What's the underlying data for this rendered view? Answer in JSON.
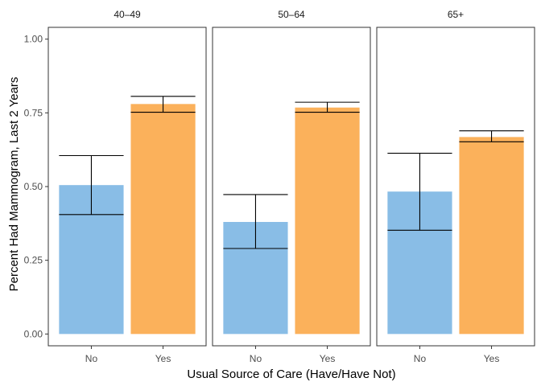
{
  "chart_data": {
    "type": "bar",
    "facets": [
      "40–49",
      "50–64",
      "65+"
    ],
    "categories": [
      "No",
      "Yes"
    ],
    "series": [
      {
        "facet": "40–49",
        "values": [
          0.505,
          0.78
        ],
        "ci_low": [
          0.405,
          0.752
        ],
        "ci_high": [
          0.605,
          0.806
        ]
      },
      {
        "facet": "50–64",
        "values": [
          0.38,
          0.768
        ],
        "ci_low": [
          0.29,
          0.752
        ],
        "ci_high": [
          0.473,
          0.786
        ]
      },
      {
        "facet": "65+",
        "values": [
          0.483,
          0.668
        ],
        "ci_low": [
          0.352,
          0.652
        ],
        "ci_high": [
          0.613,
          0.689
        ]
      }
    ],
    "colors": {
      "No": "#89bde6",
      "Yes": "#fbb15b"
    },
    "xlabel": "Usual Source of Care (Have/Have Not)",
    "ylabel": "Percent Had Mammogram, Last 2 Years",
    "ylim": [
      -0.04,
      1.04
    ],
    "yticks": [
      "0.00",
      "0.25",
      "0.50",
      "0.75",
      "1.00"
    ],
    "ytick_values": [
      0,
      0.25,
      0.5,
      0.75,
      1.0
    ],
    "grid": false,
    "legend": "none"
  }
}
